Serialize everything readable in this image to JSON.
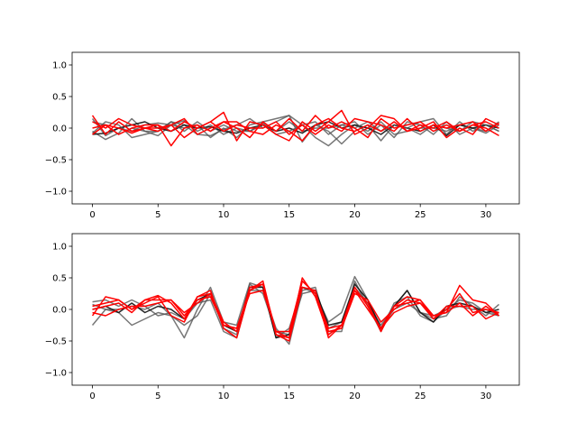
{
  "chart_data": [
    {
      "type": "line",
      "xlim": [
        -1.55,
        32.55
      ],
      "ylim": [
        -1.2,
        1.2
      ],
      "xticks": [
        0,
        5,
        10,
        15,
        20,
        25,
        30
      ],
      "yticks": [
        -1.0,
        -0.5,
        0.0,
        0.5,
        1.0
      ],
      "xtick_labels": [
        "0",
        "5",
        "10",
        "15",
        "20",
        "25",
        "30"
      ],
      "ytick_labels": [
        "−1.0",
        "−0.5",
        "0.0",
        "0.5",
        "1.0"
      ],
      "grid": false,
      "x": [
        0,
        1,
        2,
        3,
        4,
        5,
        6,
        7,
        8,
        9,
        10,
        11,
        12,
        13,
        14,
        15,
        16,
        17,
        18,
        19,
        20,
        21,
        22,
        23,
        24,
        25,
        26,
        27,
        28,
        29,
        30,
        31
      ],
      "series": [
        {
          "color": "#555555",
          "opacity": 0.8,
          "values": [
            -0.05,
            -0.18,
            -0.08,
            0.15,
            -0.05,
            -0.05,
            0.1,
            0.05,
            -0.1,
            -0.12,
            -0.02,
            0.05,
            0.15,
            0.0,
            0.1,
            0.2,
            -0.22,
            0.05,
            -0.05,
            -0.25,
            -0.05,
            0.05,
            -0.2,
            0.05,
            0.0,
            0.1,
            0.15,
            -0.1,
            0.1,
            -0.05,
            0.05,
            -0.05
          ]
        },
        {
          "color": "#555555",
          "opacity": 0.8,
          "values": [
            0.1,
            0.05,
            -0.1,
            0.0,
            -0.05,
            -0.12,
            0.05,
            0.0,
            0.05,
            -0.15,
            0.0,
            -0.15,
            0.05,
            0.1,
            0.15,
            0.2,
            0.05,
            -0.15,
            -0.28,
            -0.1,
            0.05,
            -0.05,
            0.1,
            -0.1,
            -0.05,
            0.0,
            0.0,
            -0.05,
            0.05,
            0.0,
            -0.05,
            0.1
          ]
        },
        {
          "color": "#555555",
          "opacity": 0.8,
          "values": [
            0.15,
            -0.12,
            0.0,
            -0.05,
            0.05,
            0.08,
            0.05,
            0.12,
            -0.05,
            0.05,
            -0.1,
            0.0,
            -0.05,
            0.05,
            -0.05,
            0.1,
            -0.05,
            0.0,
            0.0,
            0.05,
            0.1,
            -0.1,
            0.05,
            -0.15,
            0.1,
            0.05,
            -0.1,
            0.1,
            -0.1,
            0.0,
            -0.08,
            0.05
          ]
        },
        {
          "color": "#111111",
          "opacity": 0.9,
          "values": [
            -0.1,
            -0.08,
            0.0,
            0.05,
            0.1,
            0.0,
            -0.05,
            0.05,
            0.0,
            0.02,
            -0.05,
            -0.08,
            0.0,
            0.05,
            -0.05,
            0.0,
            -0.08,
            0.05,
            0.1,
            0.0,
            0.05,
            0.0,
            -0.1,
            0.05,
            0.0,
            -0.05,
            0.05,
            -0.12,
            0.05,
            0.0,
            0.05,
            0.0
          ]
        },
        {
          "color": "#555555",
          "opacity": 0.8,
          "values": [
            -0.08,
            0.1,
            0.05,
            -0.15,
            -0.1,
            -0.05,
            0.1,
            -0.05,
            0.1,
            -0.05,
            0.05,
            -0.05,
            -0.05,
            0.08,
            -0.1,
            -0.05,
            0.05,
            0.1,
            -0.1,
            0.05,
            0.0,
            0.1,
            -0.05,
            0.05,
            0.0,
            -0.1,
            0.05,
            0.0,
            -0.05,
            0.1,
            0.05,
            -0.05
          ]
        },
        {
          "color": "#ff0000",
          "opacity": 1,
          "values": [
            0.2,
            -0.1,
            0.1,
            -0.05,
            0.0,
            0.05,
            -0.05,
            0.1,
            0.0,
            0.1,
            0.25,
            -0.2,
            0.1,
            0.05,
            -0.1,
            -0.2,
            0.1,
            -0.05,
            0.1,
            0.28,
            -0.1,
            0.0,
            0.2,
            0.15,
            -0.05,
            0.0,
            0.1,
            -0.15,
            0.0,
            -0.1,
            0.15,
            0.05
          ]
        },
        {
          "color": "#ff0000",
          "opacity": 1,
          "values": [
            0.1,
            0.0,
            0.15,
            0.05,
            0.0,
            0.0,
            0.05,
            0.15,
            -0.1,
            0.0,
            0.1,
            0.0,
            -0.15,
            0.1,
            -0.05,
            0.15,
            -0.05,
            0.2,
            0.0,
            0.1,
            0.0,
            -0.15,
            0.15,
            0.0,
            0.05,
            0.1,
            -0.05,
            0.05,
            -0.05,
            0.05,
            0.1,
            0.0
          ]
        },
        {
          "color": "#ff0000",
          "opacity": 1,
          "values": [
            0.0,
            0.05,
            -0.1,
            0.0,
            0.05,
            0.05,
            -0.28,
            0.0,
            0.05,
            -0.05,
            0.1,
            0.1,
            -0.05,
            -0.1,
            0.05,
            -0.05,
            -0.2,
            0.05,
            0.15,
            0.0,
            -0.05,
            0.05,
            -0.05,
            0.1,
            -0.05,
            0.05,
            0.0,
            0.1,
            -0.05,
            0.05,
            0.0,
            -0.12
          ]
        },
        {
          "color": "#ff0000",
          "opacity": 1,
          "values": [
            -0.1,
            0.05,
            0.0,
            -0.08,
            0.0,
            -0.05,
            0.05,
            -0.15,
            0.0,
            0.1,
            -0.05,
            0.05,
            0.0,
            0.0,
            0.1,
            -0.1,
            0.05,
            -0.1,
            0.05,
            -0.05,
            0.15,
            0.1,
            0.05,
            -0.05,
            0.15,
            -0.05,
            0.05,
            0.0,
            0.05,
            0.1,
            -0.05,
            0.08
          ]
        }
      ]
    },
    {
      "type": "line",
      "xlim": [
        -1.55,
        32.55
      ],
      "ylim": [
        -1.2,
        1.2
      ],
      "xticks": [
        0,
        5,
        10,
        15,
        20,
        25,
        30
      ],
      "yticks": [
        -1.0,
        -0.5,
        0.0,
        0.5,
        1.0
      ],
      "xtick_labels": [
        "0",
        "5",
        "10",
        "15",
        "20",
        "25",
        "30"
      ],
      "ytick_labels": [
        "−1.0",
        "−0.5",
        "0.0",
        "0.5",
        "1.0"
      ],
      "grid": false,
      "x": [
        0,
        1,
        2,
        3,
        4,
        5,
        6,
        7,
        8,
        9,
        10,
        11,
        12,
        13,
        14,
        15,
        16,
        17,
        18,
        19,
        20,
        21,
        22,
        23,
        24,
        25,
        26,
        27,
        28,
        29,
        30,
        31
      ],
      "series": [
        {
          "color": "#555555",
          "opacity": 0.8,
          "values": [
            -0.25,
            0.0,
            -0.05,
            -0.25,
            -0.15,
            -0.05,
            -0.1,
            -0.45,
            0.0,
            0.35,
            -0.2,
            -0.25,
            0.42,
            0.35,
            -0.45,
            -0.3,
            0.35,
            0.25,
            -0.2,
            -0.05,
            0.52,
            0.15,
            -0.3,
            0.0,
            0.1,
            -0.05,
            -0.15,
            -0.1,
            0.2,
            0.05,
            -0.1,
            0.08
          ]
        },
        {
          "color": "#555555",
          "opacity": 0.8,
          "values": [
            0.12,
            0.15,
            0.05,
            0.15,
            0.05,
            -0.1,
            -0.05,
            -0.15,
            0.1,
            0.15,
            -0.35,
            -0.45,
            0.3,
            0.3,
            -0.3,
            -0.55,
            0.3,
            0.35,
            -0.35,
            -0.35,
            0.45,
            0.05,
            -0.35,
            0.1,
            0.2,
            -0.1,
            -0.2,
            0.0,
            0.15,
            0.1,
            -0.05,
            -0.1
          ]
        },
        {
          "color": "#555555",
          "opacity": 0.8,
          "values": [
            0.08,
            0.0,
            0.0,
            0.05,
            0.0,
            0.1,
            -0.1,
            -0.25,
            -0.1,
            0.25,
            -0.3,
            -0.4,
            0.4,
            0.25,
            -0.35,
            -0.4,
            0.25,
            0.3,
            -0.3,
            -0.2,
            0.35,
            0.1,
            -0.25,
            0.05,
            0.3,
            -0.05,
            -0.1,
            0.0,
            0.05,
            0.0,
            0.0,
            -0.1
          ]
        },
        {
          "color": "#111111",
          "opacity": 0.9,
          "values": [
            0.0,
            0.05,
            -0.05,
            0.1,
            -0.05,
            0.05,
            0.0,
            -0.15,
            0.15,
            0.25,
            -0.25,
            -0.35,
            0.35,
            0.35,
            -0.45,
            -0.4,
            0.35,
            0.3,
            -0.25,
            -0.2,
            0.4,
            0.15,
            -0.3,
            0.05,
            0.3,
            -0.05,
            -0.2,
            0.05,
            0.1,
            0.05,
            -0.05,
            0.0
          ]
        },
        {
          "color": "#ff0000",
          "opacity": 1,
          "values": [
            -0.1,
            0.2,
            0.15,
            0.0,
            0.1,
            0.2,
            -0.1,
            -0.2,
            0.2,
            0.3,
            -0.3,
            -0.45,
            0.3,
            0.45,
            -0.4,
            -0.5,
            0.35,
            0.3,
            -0.45,
            -0.25,
            0.35,
            0.05,
            -0.3,
            0.05,
            0.1,
            0.15,
            -0.15,
            0.0,
            0.25,
            -0.05,
            0.0,
            -0.05
          ]
        },
        {
          "color": "#ff0000",
          "opacity": 1,
          "values": [
            0.05,
            0.1,
            0.15,
            0.0,
            0.15,
            0.15,
            0.15,
            -0.1,
            0.15,
            0.2,
            -0.25,
            -0.3,
            0.3,
            0.4,
            -0.35,
            -0.45,
            0.5,
            0.2,
            -0.4,
            -0.25,
            0.3,
            0.1,
            -0.35,
            0.05,
            0.2,
            0.15,
            -0.1,
            -0.05,
            0.38,
            0.15,
            0.1,
            -0.1
          ]
        },
        {
          "color": "#ff0000",
          "opacity": 1,
          "values": [
            0.0,
            0.05,
            0.1,
            -0.05,
            0.15,
            0.22,
            0.1,
            -0.15,
            0.2,
            0.25,
            -0.2,
            -0.35,
            0.35,
            0.4,
            -0.4,
            -0.45,
            0.45,
            0.25,
            -0.35,
            -0.3,
            0.25,
            0.15,
            -0.2,
            0.0,
            0.15,
            0.1,
            -0.15,
            0.05,
            0.05,
            0.05,
            -0.15,
            -0.05
          ]
        },
        {
          "color": "#ff0000",
          "opacity": 1,
          "values": [
            -0.05,
            -0.1,
            0.0,
            0.05,
            0.05,
            0.1,
            0.15,
            -0.05,
            0.1,
            0.25,
            -0.25,
            -0.3,
            0.25,
            0.3,
            -0.35,
            -0.35,
            0.45,
            0.25,
            -0.3,
            -0.25,
            0.3,
            0.0,
            -0.3,
            -0.05,
            0.05,
            0.1,
            -0.1,
            -0.05,
            0.1,
            -0.1,
            0.05,
            -0.1
          ]
        }
      ]
    }
  ]
}
